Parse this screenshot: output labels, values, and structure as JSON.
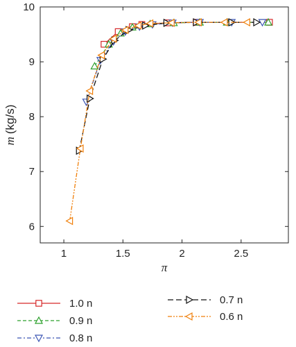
{
  "chart_data": {
    "type": "line",
    "xlabel": "π",
    "ylabel_symbol": "m",
    "ylabel_unit": "(kg/s)",
    "xlim": [
      0.8,
      2.9
    ],
    "ylim": [
      5.7,
      10
    ],
    "xticks": [
      1,
      1.5,
      2,
      2.5
    ],
    "xtick_labels": [
      "1",
      "1.5",
      "2",
      "2.5"
    ],
    "yticks": [
      6,
      7,
      8,
      9,
      10
    ],
    "ytick_labels": [
      "6",
      "7",
      "8",
      "9",
      "10"
    ],
    "grid": false,
    "legend_position": "below",
    "series": [
      {
        "name": "1.0 n",
        "color": "#d62728",
        "dash": "solid",
        "marker": "square",
        "x": [
          1.34,
          1.46,
          1.58,
          1.66,
          1.88,
          2.12,
          2.74
        ],
        "y": [
          9.32,
          9.55,
          9.64,
          9.68,
          9.71,
          9.72,
          9.72
        ]
      },
      {
        "name": "0.9 n",
        "color": "#2ca02c",
        "dash": "dash",
        "marker": "triangle-up",
        "x": [
          1.26,
          1.38,
          1.48,
          1.58,
          1.73,
          1.93,
          2.15,
          2.38,
          2.73
        ],
        "y": [
          8.92,
          9.32,
          9.52,
          9.63,
          9.69,
          9.71,
          9.72,
          9.72,
          9.72
        ]
      },
      {
        "name": "0.8 n",
        "color": "#3b55b3",
        "dash": "dashdot",
        "marker": "triangle-down",
        "x": [
          1.19,
          1.31,
          1.42,
          1.52,
          1.64,
          1.75,
          1.92,
          2.15,
          2.42,
          2.68
        ],
        "y": [
          8.27,
          9.03,
          9.37,
          9.55,
          9.64,
          9.68,
          9.71,
          9.72,
          9.72,
          9.72
        ]
      },
      {
        "name": "0.7 n",
        "color": "#111111",
        "dash": "longdash",
        "marker": "triangle-right",
        "x": [
          1.13,
          1.22,
          1.33,
          1.43,
          1.55,
          1.69,
          1.87,
          2.12,
          2.42,
          2.63
        ],
        "y": [
          7.38,
          8.33,
          9.05,
          9.39,
          9.58,
          9.66,
          9.71,
          9.72,
          9.72,
          9.72
        ]
      },
      {
        "name": "0.6 n",
        "color": "#f07f0a",
        "dash": "dashdotdot",
        "marker": "triangle-left",
        "x": [
          1.05,
          1.14,
          1.22,
          1.32,
          1.42,
          1.52,
          1.63,
          1.73,
          1.91,
          2.14,
          2.36,
          2.55
        ],
        "y": [
          6.1,
          7.42,
          8.47,
          9.12,
          9.42,
          9.58,
          9.66,
          9.7,
          9.71,
          9.72,
          9.72,
          9.72
        ]
      }
    ]
  }
}
